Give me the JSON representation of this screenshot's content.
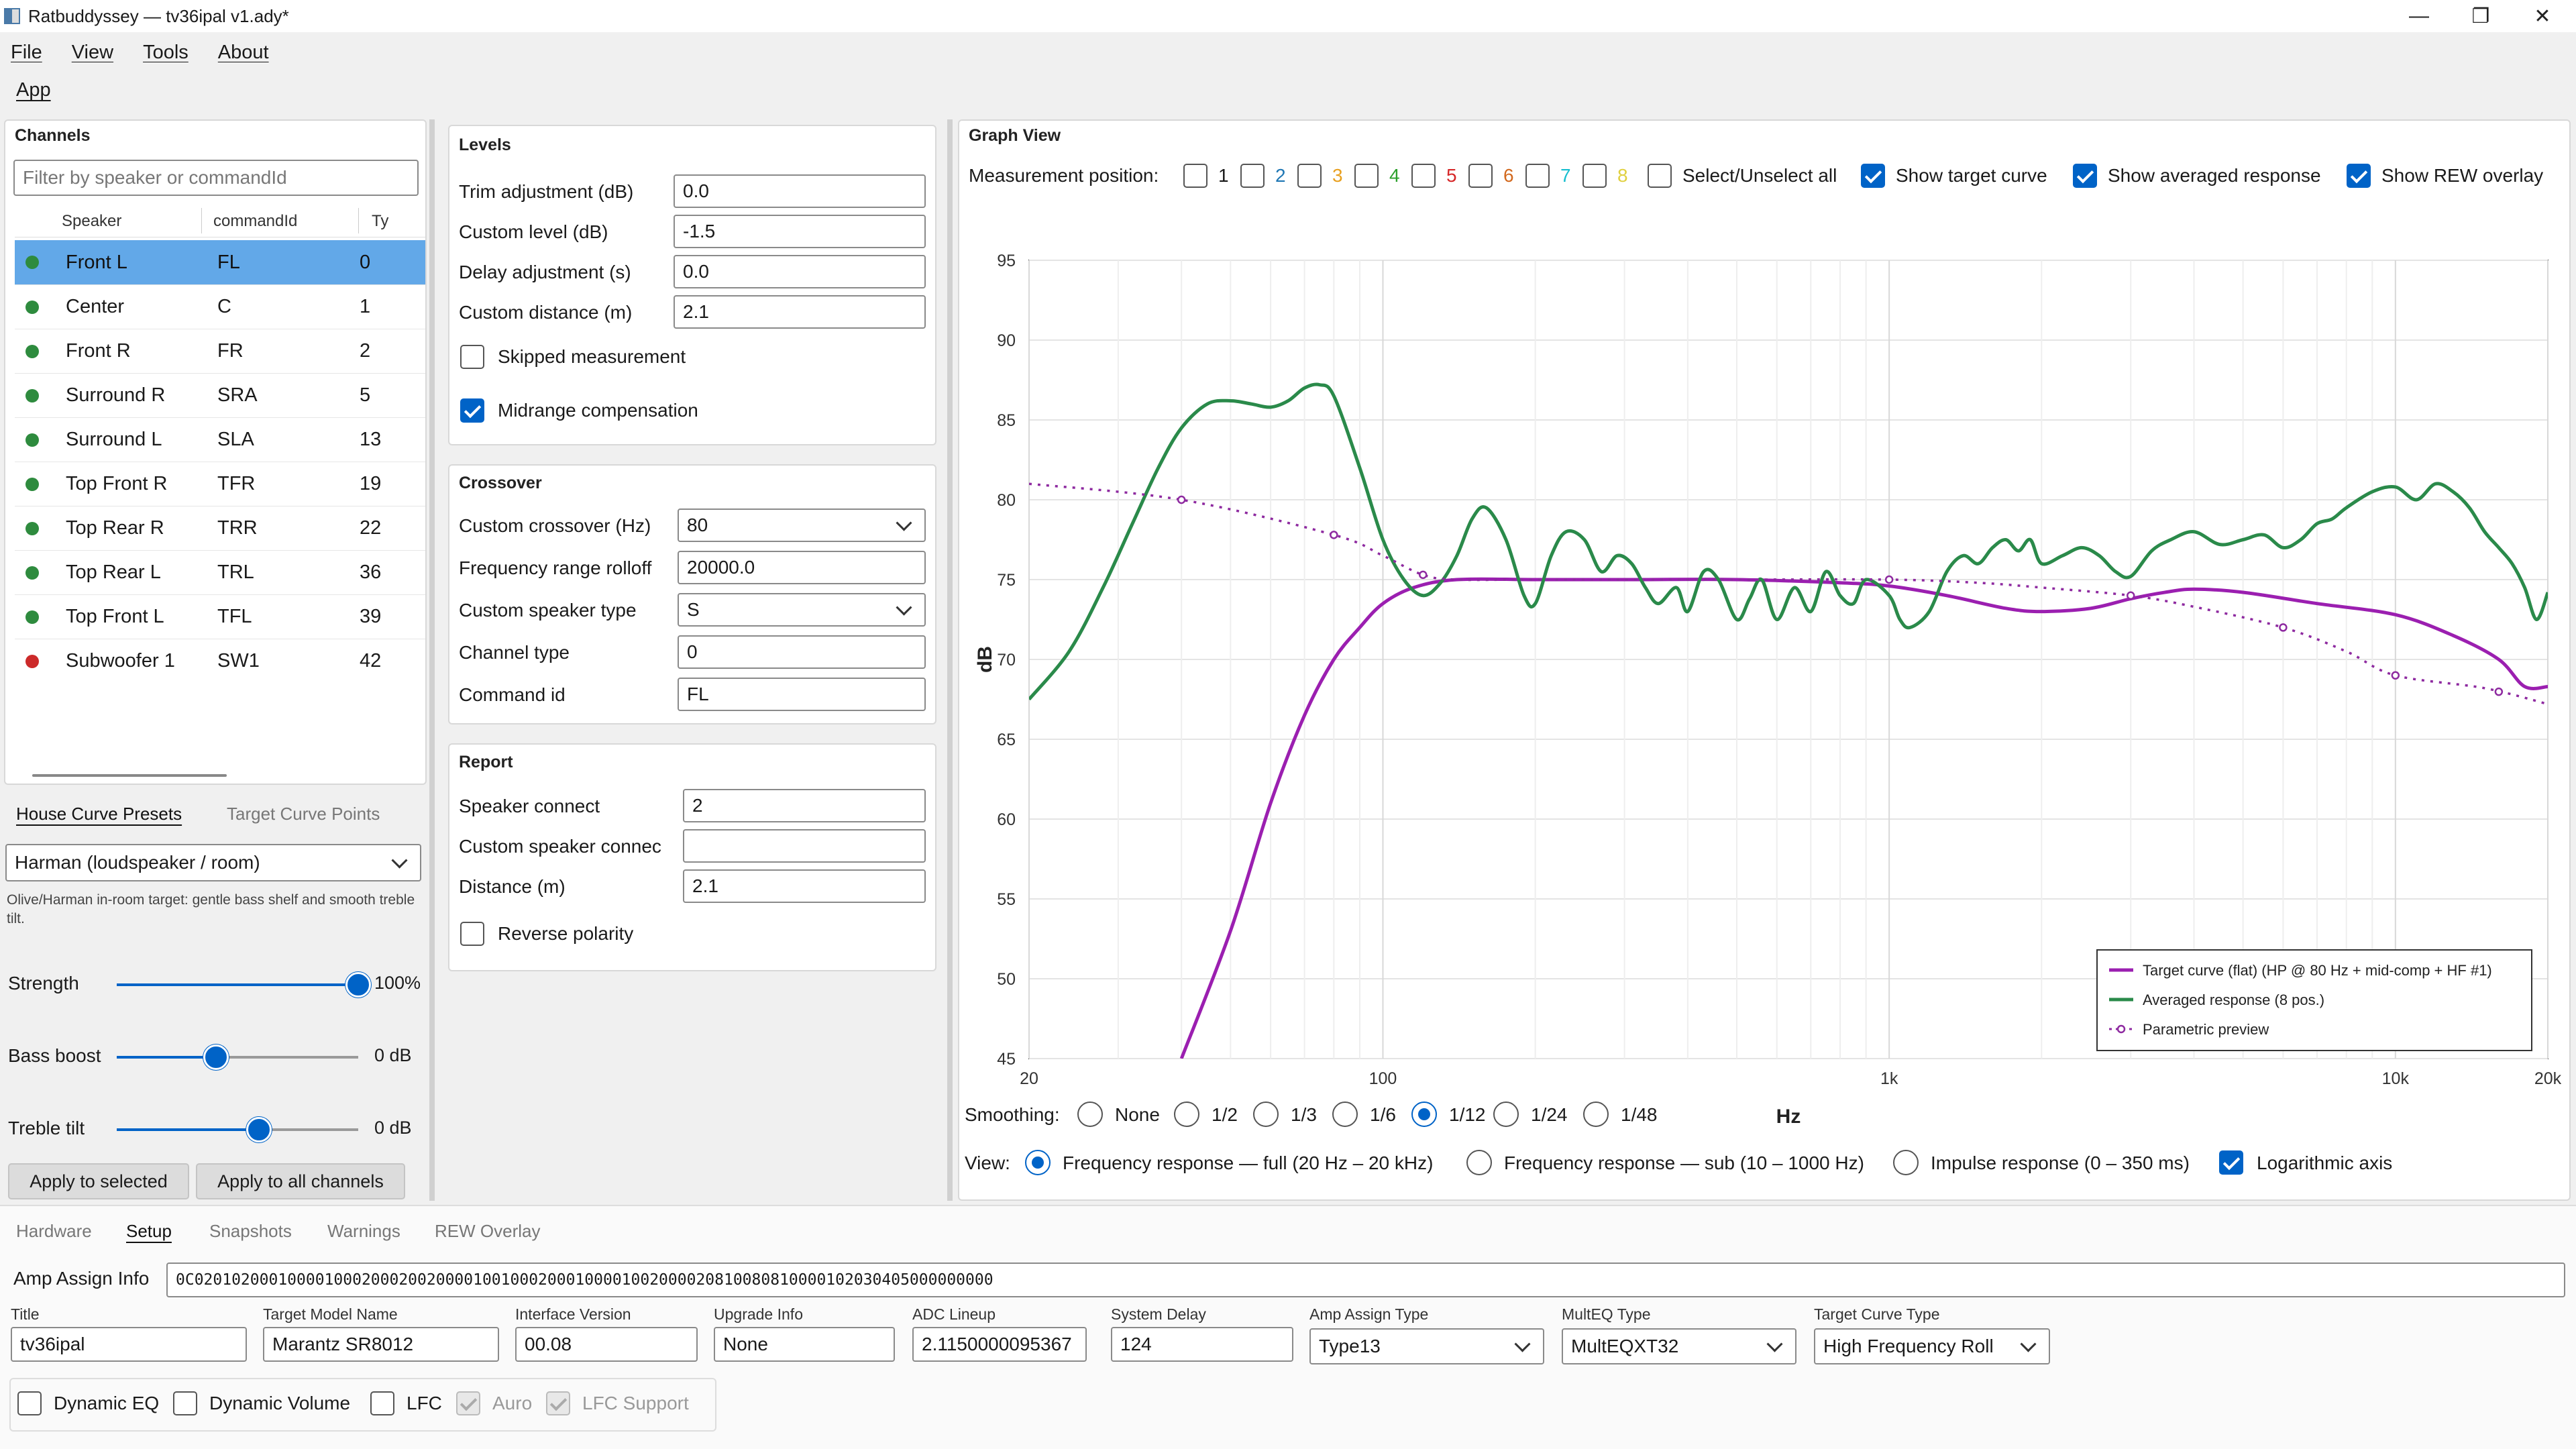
{
  "window": {
    "title": "Ratbuddyssey — tv36ipal v1.ady*"
  },
  "menu": [
    "File",
    "View",
    "Tools",
    "About"
  ],
  "app_tab": "App",
  "channels": {
    "title": "Channels",
    "filter_placeholder": "Filter by speaker or commandId",
    "columns": [
      "Speaker",
      "commandId",
      "Ty"
    ],
    "rows": [
      {
        "speaker": "Front L",
        "cid": "FL",
        "ty": "0",
        "status_color": "#2e8b3e"
      },
      {
        "speaker": "Center",
        "cid": "C",
        "ty": "1",
        "status_color": "#2e8b3e"
      },
      {
        "speaker": "Front R",
        "cid": "FR",
        "ty": "2",
        "status_color": "#2e8b3e"
      },
      {
        "speaker": "Surround R",
        "cid": "SRA",
        "ty": "5",
        "status_color": "#2e8b3e"
      },
      {
        "speaker": "Surround L",
        "cid": "SLA",
        "ty": "13",
        "status_color": "#2e8b3e"
      },
      {
        "speaker": "Top Front R",
        "cid": "TFR",
        "ty": "19",
        "status_color": "#2e8b3e"
      },
      {
        "speaker": "Top Rear R",
        "cid": "TRR",
        "ty": "22",
        "status_color": "#2e8b3e"
      },
      {
        "speaker": "Top Rear L",
        "cid": "TRL",
        "ty": "36",
        "status_color": "#2e8b3e"
      },
      {
        "speaker": "Top Front L",
        "cid": "TFL",
        "ty": "39",
        "status_color": "#2e8b3e"
      },
      {
        "speaker": "Subwoofer 1",
        "cid": "SW1",
        "ty": "42",
        "status_color": "#cc2a2a"
      }
    ]
  },
  "house_curve": {
    "tabs": [
      "House Curve Presets",
      "Target Curve Points"
    ],
    "preset": "Harman (loudspeaker / room)",
    "description": "Olive/Harman in-room target: gentle bass shelf and smooth treble tilt.",
    "sliders": [
      {
        "label": "Strength",
        "value": "100%",
        "fraction": 1.0
      },
      {
        "label": "Bass boost",
        "value": "0 dB",
        "fraction": 0.41
      },
      {
        "label": "Treble tilt",
        "value": "0 dB",
        "fraction": 0.59
      }
    ],
    "apply_selected": "Apply to selected",
    "apply_all": "Apply to all channels"
  },
  "levels": {
    "title": "Levels",
    "fields": [
      {
        "label": "Trim adjustment (dB)",
        "value": "0.0"
      },
      {
        "label": "Custom level (dB)",
        "value": "-1.5"
      },
      {
        "label": "Delay adjustment (s)",
        "value": "0.0"
      },
      {
        "label": "Custom distance (m)",
        "value": "2.1"
      }
    ],
    "skipped": "Skipped measurement",
    "midrange": "Midrange compensation"
  },
  "crossover": {
    "title": "Crossover",
    "fields": [
      {
        "label": "Custom crossover (Hz)",
        "value": "80"
      },
      {
        "label": "Frequency range rolloff",
        "value": "20000.0"
      },
      {
        "label": "Custom speaker type",
        "value": "S"
      },
      {
        "label": "Channel type",
        "value": "0"
      },
      {
        "label": "Command id",
        "value": "FL"
      }
    ]
  },
  "report": {
    "title": "Report",
    "fields": [
      {
        "label": "Speaker connect",
        "value": "2"
      },
      {
        "label": "Custom speaker connec",
        "value": ""
      },
      {
        "label": "Distance (m)",
        "value": "2.1"
      }
    ],
    "reverse": "Reverse polarity"
  },
  "graph": {
    "title": "Graph View",
    "mp_label": "Measurement position:",
    "positions": [
      {
        "n": "1",
        "color": "#1a1a1a"
      },
      {
        "n": "2",
        "color": "#1f77b4"
      },
      {
        "n": "3",
        "color": "#e8a020"
      },
      {
        "n": "4",
        "color": "#2ca02c"
      },
      {
        "n": "5",
        "color": "#d62728"
      },
      {
        "n": "6",
        "color": "#d2691e"
      },
      {
        "n": "7",
        "color": "#17becf"
      },
      {
        "n": "8",
        "color": "#e0d040"
      }
    ],
    "select_all": "Select/Unselect all",
    "show_target": "Show target curve",
    "show_avg": "Show averaged response",
    "show_rew": "Show REW overlay",
    "smoothing_label": "Smoothing:",
    "smoothing": [
      "None",
      "1/2",
      "1/3",
      "1/6",
      "1/12",
      "1/24",
      "1/48"
    ],
    "smoothing_selected": "1/12",
    "view_label": "View:",
    "views": [
      "Frequency response — full (20 Hz – 20 kHz)",
      "Frequency response — sub (10 – 1000 Hz)",
      "Impulse response (0 – 350 ms)"
    ],
    "log_axis": "Logarithmic axis"
  },
  "chart_data": {
    "type": "line",
    "xlabel": "Hz",
    "ylabel": "dB",
    "xscale": "log",
    "xlim": [
      20,
      20000
    ],
    "ylim": [
      45,
      95
    ],
    "xticks": [
      {
        "v": 20,
        "l": "20"
      },
      {
        "v": 100,
        "l": "100"
      },
      {
        "v": 1000,
        "l": "1k"
      },
      {
        "v": 10000,
        "l": "10k"
      },
      {
        "v": 20000,
        "l": "20k"
      }
    ],
    "yticks": [
      45,
      50,
      55,
      60,
      65,
      70,
      75,
      80,
      85,
      90,
      95
    ],
    "grid": true,
    "legend": "bottom-right",
    "series": [
      {
        "name": "Target curve (flat) (HP @ 80 Hz + mid-comp + HF #1)",
        "color": "#9b1fb0",
        "style": "solid",
        "x": [
          40,
          50,
          60,
          70,
          80,
          90,
          100,
          115,
          140,
          200,
          300,
          500,
          800,
          1000,
          1300,
          1700,
          2000,
          2500,
          3000,
          3500,
          4000,
          5000,
          7000,
          10000,
          13000,
          16000,
          18000,
          20000
        ],
        "y": [
          45,
          53,
          61,
          66.5,
          70,
          72,
          73.5,
          74.5,
          75,
          75,
          75,
          75,
          74.8,
          74.6,
          74,
          73.2,
          73,
          73.2,
          73.8,
          74.2,
          74.4,
          74.2,
          73.5,
          72.8,
          71.5,
          70,
          68.3,
          68.3
        ]
      },
      {
        "name": "Averaged response (8 pos.)",
        "color": "#2a8a4a",
        "style": "solid",
        "x": [
          20,
          24,
          28,
          32,
          36,
          40,
          45,
          50,
          55,
          60,
          65,
          70,
          75,
          80,
          90,
          100,
          110,
          120,
          130,
          140,
          150,
          160,
          175,
          190,
          200,
          215,
          230,
          250,
          270,
          290,
          310,
          330,
          350,
          380,
          400,
          430,
          460,
          500,
          530,
          560,
          600,
          650,
          700,
          750,
          800,
          850,
          900,
          1000,
          1050,
          1100,
          1200,
          1300,
          1400,
          1500,
          1600,
          1700,
          1800,
          1900,
          2000,
          2200,
          2400,
          2600,
          2800,
          3000,
          3300,
          3600,
          4000,
          4500,
          5000,
          5500,
          6000,
          6500,
          7000,
          7500,
          8000,
          9000,
          10000,
          11000,
          12000,
          13000,
          14000,
          15000,
          16000,
          17000,
          18000,
          19000,
          20000
        ],
        "y": [
          67.5,
          70.5,
          74.5,
          78.5,
          82,
          84.5,
          86,
          86.2,
          86,
          85.8,
          86.2,
          87,
          87.2,
          86.5,
          82,
          77.5,
          75,
          74,
          74.8,
          76.5,
          78.8,
          79.5,
          77.5,
          74,
          73.5,
          76.5,
          78,
          77.5,
          75.5,
          76.5,
          76,
          74.5,
          73.5,
          74.5,
          73,
          75.5,
          75,
          72.5,
          73.8,
          75,
          72.5,
          74.5,
          73,
          75.5,
          74,
          73.5,
          75,
          74,
          72.5,
          72,
          73,
          75.5,
          76.5,
          76,
          77,
          77.5,
          76.8,
          77.5,
          76,
          76.5,
          77,
          76.5,
          75.5,
          75.2,
          76.8,
          77.5,
          78,
          77.2,
          77.5,
          77.8,
          77,
          77.5,
          78.5,
          78.8,
          79.5,
          80.5,
          80.8,
          80,
          81,
          80.5,
          79.5,
          78,
          77,
          76,
          74.5,
          72.5,
          74.2
        ]
      },
      {
        "name": "Parametric preview",
        "color": "#8e2aa0",
        "style": "dotted",
        "x": [
          20,
          40,
          80,
          100,
          120,
          140,
          200,
          500,
          1000,
          1500,
          2000,
          3000,
          4000,
          6000,
          8000,
          10000,
          15000,
          20000
        ],
        "y": [
          81,
          80,
          77.8,
          76.5,
          75.3,
          75,
          75,
          75,
          75,
          74.8,
          74.5,
          74,
          73.3,
          72,
          70.5,
          69,
          68.2,
          67.2
        ],
        "markers_x": [
          40,
          80,
          120,
          1000,
          3000,
          6000,
          10000,
          16000
        ]
      }
    ]
  },
  "bottom": {
    "tabs": [
      "Hardware",
      "Setup",
      "Snapshots",
      "Warnings",
      "REW Overlay"
    ],
    "active_tab": "Setup",
    "amp_assign_label": "Amp Assign Info",
    "amp_assign_value": "0C02010200010000100020002002000010010002000100001002000020810080810000102030405000000000",
    "fields": [
      {
        "label": "Title",
        "value": "tv36ipal"
      },
      {
        "label": "Target Model Name",
        "value": "Marantz SR8012"
      },
      {
        "label": "Interface Version",
        "value": "00.08"
      },
      {
        "label": "Upgrade Info",
        "value": "None"
      },
      {
        "label": "ADC Lineup",
        "value": "2.1150000095367"
      },
      {
        "label": "System Delay",
        "value": "124"
      }
    ],
    "dropdowns": [
      {
        "label": "Amp Assign Type",
        "value": "Type13"
      },
      {
        "label": "MultEQ Type",
        "value": "MultEQXT32"
      },
      {
        "label": "Target Curve Type",
        "value": "High Frequency Roll"
      }
    ],
    "toggles": [
      {
        "label": "Dynamic EQ",
        "state": "off"
      },
      {
        "label": "Dynamic Volume",
        "state": "off"
      },
      {
        "label": "LFC",
        "state": "off"
      },
      {
        "label": "Auro",
        "state": "disabled"
      },
      {
        "label": "LFC Support",
        "state": "disabled"
      }
    ]
  }
}
